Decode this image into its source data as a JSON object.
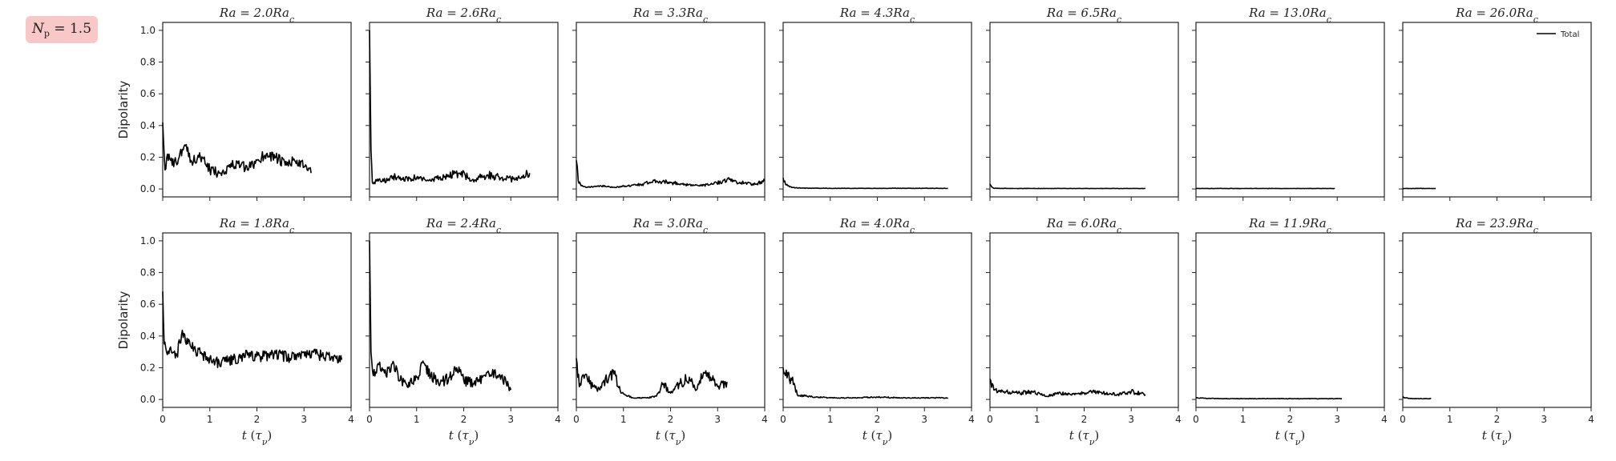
{
  "badge": {
    "label": "N_p = 1.5",
    "sym": "N",
    "sub": "p",
    "rest": " = 1.5"
  },
  "chart_data": {
    "type": "line",
    "layout": {
      "rows": 2,
      "cols": 7
    },
    "ylabel": "Dipolarity",
    "xlabel": "t (τ_ν)",
    "ylim": [
      -0.05,
      1.05
    ],
    "xlim": [
      0,
      4
    ],
    "xticks": [
      0,
      1,
      2,
      3,
      4
    ],
    "yticks": [
      0.0,
      0.2,
      0.4,
      0.6,
      0.8,
      1.0
    ],
    "legend": {
      "entries": [
        "Total"
      ],
      "placement": "top-right",
      "color": "#000000"
    },
    "grid": false,
    "panels": [
      {
        "row": 0,
        "col": 0,
        "title": "Ra = 2.0Ra_c",
        "t_end": 3.15,
        "series": [
          {
            "name": "Total",
            "x": [
              0,
              0.05,
              0.1,
              0.2,
              0.35,
              0.5,
              0.6,
              0.8,
              1.0,
              1.2,
              1.4,
              1.6,
              1.8,
              2.0,
              2.2,
              2.4,
              2.6,
              2.8,
              3.0,
              3.15
            ],
            "y": [
              0.42,
              0.12,
              0.22,
              0.15,
              0.2,
              0.28,
              0.18,
              0.2,
              0.12,
              0.1,
              0.14,
              0.16,
              0.12,
              0.18,
              0.22,
              0.2,
              0.15,
              0.18,
              0.14,
              0.1
            ]
          }
        ]
      },
      {
        "row": 0,
        "col": 1,
        "title": "Ra = 2.6Ra_c",
        "t_end": 3.4,
        "series": [
          {
            "name": "Total",
            "x": [
              0,
              0.03,
              0.06,
              0.15,
              0.3,
              0.5,
              0.7,
              1.0,
              1.3,
              1.6,
              1.9,
              2.2,
              2.5,
              2.8,
              3.1,
              3.4
            ],
            "y": [
              1.0,
              0.25,
              0.04,
              0.05,
              0.05,
              0.08,
              0.06,
              0.07,
              0.05,
              0.08,
              0.1,
              0.06,
              0.09,
              0.07,
              0.06,
              0.1
            ]
          }
        ]
      },
      {
        "row": 0,
        "col": 2,
        "title": "Ra = 3.3Ra_c",
        "t_end": 4.0,
        "series": [
          {
            "name": "Total",
            "x": [
              0,
              0.04,
              0.1,
              0.2,
              0.5,
              0.8,
              1.1,
              1.4,
              1.7,
              2.0,
              2.3,
              2.6,
              2.9,
              3.2,
              3.5,
              3.8,
              4.0
            ],
            "y": [
              0.18,
              0.05,
              0.02,
              0.01,
              0.02,
              0.01,
              0.02,
              0.03,
              0.05,
              0.04,
              0.03,
              0.02,
              0.03,
              0.06,
              0.04,
              0.03,
              0.05
            ]
          }
        ]
      },
      {
        "row": 0,
        "col": 3,
        "title": "Ra = 4.3Ra_c",
        "t_end": 3.5,
        "series": [
          {
            "name": "Total",
            "x": [
              0,
              0.05,
              0.1,
              0.2,
              0.4,
              1.0,
              1.5,
              2.0,
              2.5,
              3.0,
              3.5
            ],
            "y": [
              0.07,
              0.03,
              0.02,
              0.01,
              0.005,
              0.004,
              0.004,
              0.004,
              0.004,
              0.004,
              0.004
            ]
          }
        ]
      },
      {
        "row": 0,
        "col": 4,
        "title": "Ra = 6.5Ra_c",
        "t_end": 3.3,
        "series": [
          {
            "name": "Total",
            "x": [
              0,
              0.05,
              0.1,
              0.2,
              0.5,
              1.0,
              1.5,
              2.0,
              2.5,
              3.0,
              3.3
            ],
            "y": [
              0.03,
              0.01,
              0.004,
              0.004,
              0.003,
              0.003,
              0.003,
              0.003,
              0.003,
              0.003,
              0.003
            ]
          }
        ]
      },
      {
        "row": 0,
        "col": 5,
        "title": "Ra = 13.0Ra_c",
        "t_end": 2.95,
        "series": [
          {
            "name": "Total",
            "x": [
              0,
              0.5,
              1.0,
              1.5,
              2.0,
              2.5,
              2.95
            ],
            "y": [
              0.003,
              0.003,
              0.003,
              0.003,
              0.003,
              0.003,
              0.003
            ]
          }
        ]
      },
      {
        "row": 0,
        "col": 6,
        "title": "Ra = 26.0Ra_c",
        "t_end": 0.7,
        "series": [
          {
            "name": "Total",
            "x": [
              0,
              0.35,
              0.7
            ],
            "y": [
              0.003,
              0.003,
              0.003
            ]
          }
        ]
      },
      {
        "row": 1,
        "col": 0,
        "title": "Ra = 1.8Ra_c",
        "t_end": 3.8,
        "series": [
          {
            "name": "Total",
            "x": [
              0,
              0.03,
              0.08,
              0.15,
              0.3,
              0.4,
              0.6,
              0.8,
              1.0,
              1.2,
              1.5,
              1.8,
              2.1,
              2.4,
              2.7,
              3.0,
              3.3,
              3.6,
              3.8
            ],
            "y": [
              0.68,
              0.35,
              0.3,
              0.32,
              0.28,
              0.41,
              0.33,
              0.29,
              0.26,
              0.23,
              0.25,
              0.28,
              0.27,
              0.29,
              0.26,
              0.3,
              0.28,
              0.27,
              0.25
            ]
          }
        ]
      },
      {
        "row": 1,
        "col": 1,
        "title": "Ra = 2.4Ra_c",
        "t_end": 3.0,
        "series": [
          {
            "name": "Total",
            "x": [
              0,
              0.03,
              0.08,
              0.2,
              0.35,
              0.5,
              0.65,
              0.8,
              1.0,
              1.15,
              1.3,
              1.5,
              1.7,
              1.85,
              2.0,
              2.2,
              2.4,
              2.6,
              2.8,
              3.0
            ],
            "y": [
              1.0,
              0.3,
              0.15,
              0.22,
              0.15,
              0.24,
              0.12,
              0.08,
              0.14,
              0.23,
              0.15,
              0.1,
              0.14,
              0.2,
              0.12,
              0.1,
              0.14,
              0.16,
              0.15,
              0.06
            ]
          }
        ]
      },
      {
        "row": 1,
        "col": 2,
        "title": "Ra = 3.0Ra_c",
        "t_end": 3.2,
        "series": [
          {
            "name": "Total",
            "x": [
              0,
              0.03,
              0.08,
              0.2,
              0.35,
              0.5,
              0.7,
              0.8,
              0.95,
              1.2,
              1.5,
              1.7,
              1.85,
              2.0,
              2.2,
              2.4,
              2.55,
              2.7,
              2.85,
              3.0,
              3.2
            ],
            "y": [
              0.26,
              0.14,
              0.1,
              0.16,
              0.08,
              0.06,
              0.15,
              0.16,
              0.04,
              0.01,
              0.01,
              0.02,
              0.1,
              0.04,
              0.1,
              0.14,
              0.06,
              0.17,
              0.14,
              0.08,
              0.11
            ]
          }
        ]
      },
      {
        "row": 1,
        "col": 3,
        "title": "Ra = 4.0Ra_c",
        "t_end": 3.5,
        "series": [
          {
            "name": "Total",
            "x": [
              0,
              0.05,
              0.1,
              0.15,
              0.2,
              0.3,
              0.5,
              1.0,
              1.5,
              2.0,
              2.5,
              3.0,
              3.5
            ],
            "y": [
              0.2,
              0.15,
              0.17,
              0.1,
              0.14,
              0.03,
              0.02,
              0.01,
              0.01,
              0.015,
              0.01,
              0.01,
              0.01
            ]
          }
        ]
      },
      {
        "row": 1,
        "col": 4,
        "title": "Ra = 6.0Ra_c",
        "t_end": 3.3,
        "series": [
          {
            "name": "Total",
            "x": [
              0,
              0.1,
              0.3,
              0.6,
              0.9,
              1.2,
              1.5,
              1.8,
              2.1,
              2.4,
              2.7,
              3.0,
              3.3
            ],
            "y": [
              0.13,
              0.06,
              0.05,
              0.04,
              0.05,
              0.02,
              0.04,
              0.03,
              0.05,
              0.04,
              0.03,
              0.05,
              0.03
            ]
          }
        ]
      },
      {
        "row": 1,
        "col": 5,
        "title": "Ra = 11.9Ra_c",
        "t_end": 3.1,
        "series": [
          {
            "name": "Total",
            "x": [
              0,
              0.5,
              1.0,
              1.5,
              2.0,
              2.5,
              3.1
            ],
            "y": [
              0.01,
              0.005,
              0.005,
              0.005,
              0.005,
              0.005,
              0.005
            ]
          }
        ]
      },
      {
        "row": 1,
        "col": 6,
        "title": "Ra = 23.9Ra_c",
        "t_end": 0.6,
        "series": [
          {
            "name": "Total",
            "x": [
              0,
              0.05,
              0.2,
              0.4,
              0.6
            ],
            "y": [
              0.02,
              0.01,
              0.005,
              0.005,
              0.005
            ]
          }
        ]
      }
    ]
  }
}
